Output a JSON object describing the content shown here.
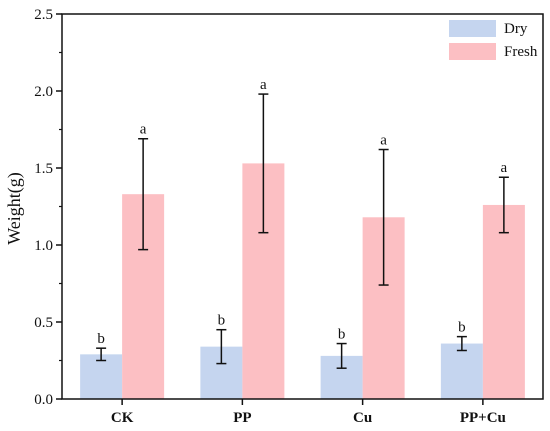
{
  "chart_data": {
    "type": "bar",
    "title": "",
    "xlabel": "",
    "ylabel": "Weight(g)",
    "ylim": [
      0,
      2.5
    ],
    "yticks": [
      "0.0",
      "0.5",
      "1.0",
      "1.5",
      "2.0",
      "2.5"
    ],
    "grid": false,
    "legend_position": "top-right",
    "categories": [
      "CK",
      "PP",
      "Cu",
      "PP+Cu"
    ],
    "series": [
      {
        "name": "Dry",
        "color": "#c5d5ef",
        "values": [
          0.29,
          0.34,
          0.28,
          0.36
        ],
        "error": [
          0.04,
          0.11,
          0.08,
          0.045
        ],
        "letters": [
          "b",
          "b",
          "b",
          "b"
        ]
      },
      {
        "name": "Fresh",
        "color": "#fcbfc3",
        "values": [
          1.33,
          1.53,
          1.18,
          1.26
        ],
        "error": [
          0.36,
          0.45,
          0.44,
          0.18
        ],
        "letters": [
          "a",
          "a",
          "a",
          "a"
        ]
      }
    ]
  }
}
